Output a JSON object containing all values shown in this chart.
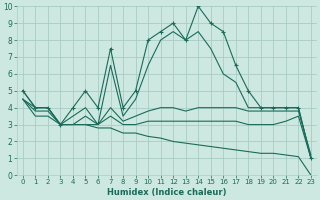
{
  "xlabel": "Humidex (Indice chaleur)",
  "xlim": [
    -0.5,
    23.5
  ],
  "ylim": [
    0,
    10
  ],
  "xticks": [
    0,
    1,
    2,
    3,
    4,
    5,
    6,
    7,
    8,
    9,
    10,
    11,
    12,
    13,
    14,
    15,
    16,
    17,
    18,
    19,
    20,
    21,
    22,
    23
  ],
  "yticks": [
    0,
    1,
    2,
    3,
    4,
    5,
    6,
    7,
    8,
    9,
    10
  ],
  "background_color": "#cce8e0",
  "grid_color": "#aaccc4",
  "line_color": "#1a6b5a",
  "lines": [
    {
      "x": [
        0,
        1,
        2,
        3,
        4,
        5,
        6,
        7,
        8,
        9,
        10,
        11,
        12,
        13,
        14,
        15,
        16,
        17,
        18,
        19,
        20,
        21,
        22,
        23
      ],
      "y": [
        5.0,
        4.0,
        4.0,
        3.0,
        4.0,
        5.0,
        4.0,
        7.5,
        4.0,
        5.0,
        8.0,
        8.5,
        9.0,
        8.0,
        10.0,
        9.0,
        8.5,
        6.5,
        5.0,
        4.0,
        4.0,
        4.0,
        4.0,
        1.0
      ],
      "marker": "+"
    },
    {
      "x": [
        0,
        1,
        2,
        3,
        4,
        5,
        6,
        7,
        8,
        9,
        10,
        11,
        12,
        13,
        14,
        15,
        16,
        17,
        18,
        19,
        20,
        21,
        22,
        23
      ],
      "y": [
        5.0,
        4.0,
        4.0,
        3.0,
        3.5,
        4.0,
        3.0,
        6.5,
        3.5,
        4.5,
        6.5,
        8.0,
        8.5,
        8.0,
        8.5,
        7.5,
        6.0,
        5.5,
        4.0,
        4.0,
        4.0,
        4.0,
        4.0,
        1.0
      ],
      "marker": null
    },
    {
      "x": [
        0,
        1,
        2,
        3,
        4,
        5,
        6,
        7,
        8,
        9,
        10,
        11,
        12,
        13,
        14,
        15,
        16,
        17,
        18,
        19,
        20,
        21,
        22,
        23
      ],
      "y": [
        4.5,
        4.0,
        4.0,
        3.0,
        3.0,
        3.5,
        3.0,
        4.0,
        3.2,
        3.5,
        3.8,
        4.0,
        4.0,
        3.8,
        4.0,
        4.0,
        4.0,
        4.0,
        3.8,
        3.8,
        3.8,
        3.8,
        3.8,
        1.2
      ],
      "marker": null
    },
    {
      "x": [
        0,
        1,
        2,
        3,
        4,
        5,
        6,
        7,
        8,
        9,
        10,
        11,
        12,
        13,
        14,
        15,
        16,
        17,
        18,
        19,
        20,
        21,
        22,
        23
      ],
      "y": [
        4.5,
        3.8,
        3.8,
        3.0,
        3.0,
        3.0,
        3.0,
        3.5,
        3.0,
        3.0,
        3.2,
        3.2,
        3.2,
        3.2,
        3.2,
        3.2,
        3.2,
        3.2,
        3.0,
        3.0,
        3.0,
        3.2,
        3.5,
        1.0
      ],
      "marker": null
    },
    {
      "x": [
        0,
        1,
        2,
        3,
        4,
        5,
        6,
        7,
        8,
        9,
        10,
        11,
        12,
        13,
        14,
        15,
        16,
        17,
        18,
        19,
        20,
        21,
        22,
        23
      ],
      "y": [
        4.5,
        3.5,
        3.5,
        3.0,
        3.0,
        3.0,
        2.8,
        2.8,
        2.5,
        2.5,
        2.3,
        2.2,
        2.0,
        1.9,
        1.8,
        1.7,
        1.6,
        1.5,
        1.4,
        1.3,
        1.3,
        1.2,
        1.1,
        0.0
      ],
      "marker": null
    }
  ]
}
